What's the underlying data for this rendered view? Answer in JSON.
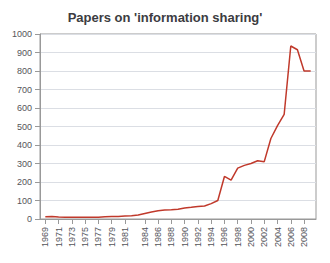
{
  "chart_data": {
    "type": "line",
    "title": "Papers on 'information sharing'",
    "x": [
      1969,
      1970,
      1971,
      1972,
      1973,
      1974,
      1975,
      1976,
      1977,
      1978,
      1979,
      1980,
      1981,
      1982,
      1983,
      1984,
      1985,
      1986,
      1987,
      1988,
      1989,
      1990,
      1991,
      1992,
      1993,
      1994,
      1995,
      1996,
      1997,
      1998,
      1999,
      2000,
      2001,
      2002,
      2003,
      2004,
      2005,
      2006,
      2007,
      2008,
      2009
    ],
    "values": [
      12,
      13,
      11,
      10,
      9,
      9,
      9,
      10,
      10,
      12,
      13,
      14,
      16,
      18,
      22,
      30,
      38,
      45,
      48,
      50,
      53,
      60,
      63,
      67,
      70,
      83,
      100,
      230,
      210,
      275,
      290,
      300,
      315,
      310,
      435,
      505,
      565,
      935,
      915,
      800,
      800
    ],
    "color": "#c0392b",
    "xlim": [
      1968.2,
      2009.8
    ],
    "xticks": [
      1969,
      1971,
      1973,
      1975,
      1977,
      1979,
      1981,
      1984,
      1986,
      1988,
      1990,
      1992,
      1994,
      1996,
      1998,
      2000,
      2002,
      2004,
      2006,
      2008
    ],
    "ylim": [
      0,
      1000
    ],
    "yticks": [
      0,
      100,
      200,
      300,
      400,
      500,
      600,
      700,
      800,
      900,
      1000
    ],
    "grid": true
  }
}
